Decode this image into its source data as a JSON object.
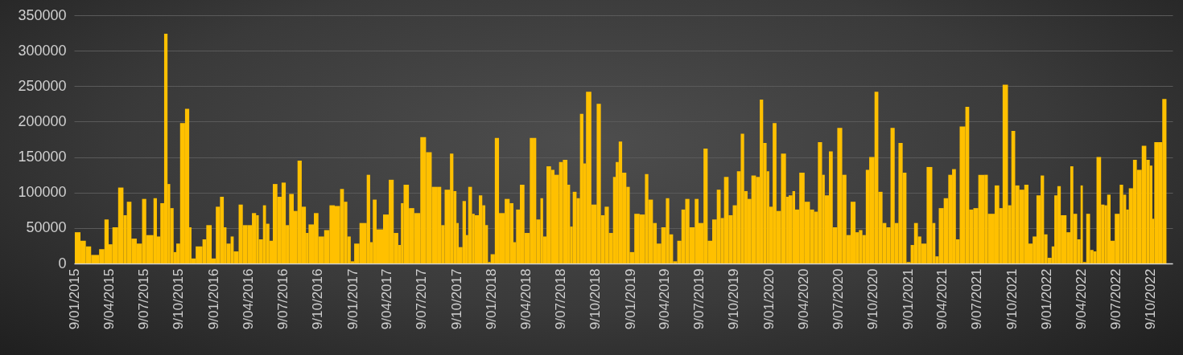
{
  "chart_data": {
    "type": "bar",
    "color": "#ffc000",
    "grid": "y",
    "xlim": [
      "2015-01-07",
      "2022-12-06"
    ],
    "ylim": [
      0,
      350000
    ],
    "yticks": [
      0,
      50000,
      100000,
      150000,
      200000,
      250000,
      300000,
      350000
    ],
    "xticks": [
      {
        "value": "2015-01-09",
        "label": "9/01/2015"
      },
      {
        "value": "2015-04-09",
        "label": "9/04/2015"
      },
      {
        "value": "2015-07-09",
        "label": "9/07/2015"
      },
      {
        "value": "2015-10-09",
        "label": "9/10/2015"
      },
      {
        "value": "2016-01-09",
        "label": "9/01/2016"
      },
      {
        "value": "2016-04-09",
        "label": "9/04/2016"
      },
      {
        "value": "2016-07-09",
        "label": "9/07/2016"
      },
      {
        "value": "2016-10-09",
        "label": "9/10/2016"
      },
      {
        "value": "2017-01-09",
        "label": "9/01/2017"
      },
      {
        "value": "2017-04-09",
        "label": "9/04/2017"
      },
      {
        "value": "2017-07-09",
        "label": "9/07/2017"
      },
      {
        "value": "2017-10-09",
        "label": "9/10/2017"
      },
      {
        "value": "2018-01-09",
        "label": "9/01/2018"
      },
      {
        "value": "2018-04-09",
        "label": "9/04/2018"
      },
      {
        "value": "2018-07-09",
        "label": "9/07/2018"
      },
      {
        "value": "2018-10-09",
        "label": "9/10/2018"
      },
      {
        "value": "2019-01-09",
        "label": "9/01/2019"
      },
      {
        "value": "2019-04-09",
        "label": "9/04/2019"
      },
      {
        "value": "2019-07-09",
        "label": "9/07/2019"
      },
      {
        "value": "2019-10-09",
        "label": "9/10/2019"
      },
      {
        "value": "2020-01-09",
        "label": "9/01/2020"
      },
      {
        "value": "2020-04-09",
        "label": "9/04/2020"
      },
      {
        "value": "2020-07-09",
        "label": "9/07/2020"
      },
      {
        "value": "2020-10-09",
        "label": "9/10/2020"
      },
      {
        "value": "2021-01-09",
        "label": "9/01/2021"
      },
      {
        "value": "2021-04-09",
        "label": "9/04/2021"
      },
      {
        "value": "2021-07-09",
        "label": "9/07/2021"
      },
      {
        "value": "2021-10-09",
        "label": "9/10/2021"
      },
      {
        "value": "2022-01-09",
        "label": "9/01/2022"
      },
      {
        "value": "2022-04-09",
        "label": "9/04/2022"
      },
      {
        "value": "2022-07-09",
        "label": "9/07/2022"
      },
      {
        "value": "2022-10-09",
        "label": "9/10/2022"
      }
    ],
    "x": [
      "2015-01-09",
      "2015-01-24",
      "2015-02-07",
      "2015-02-21",
      "2015-03-14",
      "2015-03-28",
      "2015-04-08",
      "2015-04-18",
      "2015-05-03",
      "2015-05-17",
      "2015-05-26",
      "2015-06-07",
      "2015-06-21",
      "2015-07-05",
      "2015-07-16",
      "2015-08-04",
      "2015-08-13",
      "2015-08-22",
      "2015-09-01",
      "2015-09-10",
      "2015-09-17",
      "2015-09-26",
      "2015-10-03",
      "2015-10-13",
      "2015-10-26",
      "2015-11-06",
      "2015-11-12",
      "2015-11-23",
      "2015-12-11",
      "2015-12-21",
      "2016-01-04",
      "2016-01-15",
      "2016-01-26",
      "2016-02-05",
      "2016-02-12",
      "2016-02-23",
      "2016-03-02",
      "2016-03-15",
      "2016-03-26",
      "2016-04-07",
      "2016-04-19",
      "2016-04-30",
      "2016-05-07",
      "2016-05-18",
      "2016-05-26",
      "2016-06-04",
      "2016-06-13",
      "2016-06-25",
      "2016-07-06",
      "2016-07-17",
      "2016-07-26",
      "2016-08-07",
      "2016-08-17",
      "2016-08-28",
      "2016-09-08",
      "2016-09-15",
      "2016-09-29",
      "2016-10-11",
      "2016-10-26",
      "2016-11-09",
      "2016-11-23",
      "2016-12-07",
      "2016-12-17",
      "2016-12-26",
      "2017-01-04",
      "2017-01-13",
      "2017-01-27",
      "2017-02-15",
      "2017-02-24",
      "2017-03-03",
      "2017-03-13",
      "2017-03-30",
      "2017-04-14",
      "2017-04-27",
      "2017-05-09",
      "2017-05-16",
      "2017-05-23",
      "2017-06-06",
      "2017-06-20",
      "2017-07-06",
      "2017-07-21",
      "2017-08-05",
      "2017-08-19",
      "2017-08-30",
      "2017-09-08",
      "2017-09-22",
      "2017-10-01",
      "2017-10-09",
      "2017-10-15",
      "2017-10-25",
      "2017-11-03",
      "2017-11-09",
      "2017-11-19",
      "2017-11-26",
      "2017-12-07",
      "2017-12-16",
      "2017-12-24",
      "2017-12-31",
      "2018-01-07",
      "2018-01-18",
      "2018-01-29",
      "2018-02-13",
      "2018-02-26",
      "2018-03-08",
      "2018-03-15",
      "2018-03-25",
      "2018-04-06",
      "2018-04-20",
      "2018-04-30",
      "2018-05-07",
      "2018-05-18",
      "2018-05-25",
      "2018-06-03",
      "2018-06-15",
      "2018-06-24",
      "2018-07-06",
      "2018-07-16",
      "2018-07-28",
      "2018-08-04",
      "2018-08-11",
      "2018-08-21",
      "2018-08-30",
      "2018-09-08",
      "2018-09-15",
      "2018-09-29",
      "2018-10-13",
      "2018-10-24",
      "2018-11-03",
      "2018-11-14",
      "2018-11-25",
      "2018-12-02",
      "2018-12-10",
      "2018-12-19",
      "2018-12-30",
      "2019-01-08",
      "2019-01-20",
      "2019-02-03",
      "2019-02-17",
      "2019-02-26",
      "2019-03-10",
      "2019-03-20",
      "2019-04-01",
      "2019-04-13",
      "2019-04-22",
      "2019-05-02",
      "2019-05-13",
      "2019-05-24",
      "2019-06-03",
      "2019-06-14",
      "2019-06-28",
      "2019-07-08",
      "2019-07-21",
      "2019-08-01",
      "2019-08-13",
      "2019-08-25",
      "2019-09-04",
      "2019-09-13",
      "2019-09-25",
      "2019-10-06",
      "2019-10-17",
      "2019-10-27",
      "2019-11-05",
      "2019-11-14",
      "2019-11-24",
      "2019-12-06",
      "2019-12-16",
      "2019-12-25",
      "2020-01-03",
      "2020-01-10",
      "2020-01-19",
      "2020-01-29",
      "2020-02-10",
      "2020-02-23",
      "2020-03-01",
      "2020-03-11",
      "2020-03-18",
      "2020-03-29",
      "2020-04-12",
      "2020-04-26",
      "2020-05-07",
      "2020-05-17",
      "2020-05-28",
      "2020-06-04",
      "2020-06-15",
      "2020-06-25",
      "2020-07-07",
      "2020-07-20",
      "2020-07-31",
      "2020-08-11",
      "2020-08-24",
      "2020-09-02",
      "2020-09-11",
      "2020-09-20",
      "2020-09-29",
      "2020-10-13",
      "2020-10-23",
      "2020-11-03",
      "2020-11-13",
      "2020-11-24",
      "2020-12-05",
      "2020-12-15",
      "2020-12-26",
      "2021-01-05",
      "2021-01-16",
      "2021-01-25",
      "2021-02-04",
      "2021-02-13",
      "2021-02-27",
      "2021-03-14",
      "2021-03-22",
      "2021-03-31",
      "2021-04-13",
      "2021-04-25",
      "2021-05-05",
      "2021-05-15",
      "2021-05-25",
      "2021-06-09",
      "2021-06-19",
      "2021-06-30",
      "2021-07-13",
      "2021-07-29",
      "2021-08-07",
      "2021-08-25",
      "2021-09-06",
      "2021-09-15",
      "2021-09-29",
      "2021-10-08",
      "2021-10-18",
      "2021-10-29",
      "2021-11-11",
      "2021-11-22",
      "2021-12-03",
      "2021-12-13",
      "2021-12-24",
      "2022-01-02",
      "2022-01-11",
      "2022-01-22",
      "2022-01-29",
      "2022-02-06",
      "2022-02-15",
      "2022-03-02",
      "2022-03-12",
      "2022-03-20",
      "2022-03-30",
      "2022-04-08",
      "2022-04-14",
      "2022-04-23",
      "2022-05-03",
      "2022-05-12",
      "2022-05-20",
      "2022-06-01",
      "2022-06-10",
      "2022-06-17",
      "2022-06-26",
      "2022-07-07",
      "2022-07-20",
      "2022-07-29",
      "2022-08-06",
      "2022-08-13",
      "2022-08-24",
      "2022-09-03",
      "2022-09-16",
      "2022-09-28",
      "2022-10-07",
      "2022-10-14",
      "2022-10-19",
      "2022-10-29",
      "2022-11-09"
    ],
    "values": [
      44000,
      32000,
      24000,
      12000,
      20000,
      62000,
      27000,
      51000,
      107000,
      68000,
      87000,
      35000,
      28000,
      91000,
      40000,
      92000,
      38000,
      85000,
      324000,
      112000,
      78000,
      16000,
      28000,
      198000,
      218000,
      51000,
      7000,
      24000,
      34000,
      54000,
      7000,
      80000,
      94000,
      51000,
      28000,
      38000,
      17000,
      83000,
      54000,
      54000,
      71000,
      68000,
      34000,
      82000,
      56000,
      32000,
      112000,
      94000,
      114000,
      54000,
      98000,
      74000,
      145000,
      80000,
      43000,
      55000,
      71000,
      38000,
      47000,
      82000,
      81000,
      105000,
      87000,
      38000,
      3000,
      28000,
      57000,
      125000,
      30000,
      90000,
      48000,
      69000,
      118000,
      43000,
      26000,
      85000,
      111000,
      78000,
      71000,
      178000,
      157000,
      108000,
      108000,
      54000,
      104000,
      155000,
      102000,
      57000,
      23000,
      88000,
      40000,
      108000,
      70000,
      68000,
      96000,
      82000,
      54000,
      2000,
      13000,
      177000,
      71000,
      91000,
      85000,
      30000,
      76000,
      111000,
      43000,
      177000,
      177000,
      62000,
      92000,
      38000,
      137000,
      132000,
      125000,
      143000,
      146000,
      111000,
      52000,
      101000,
      92000,
      211000,
      141000,
      242000,
      83000,
      225000,
      68000,
      80000,
      43000,
      122000,
      143000,
      172000,
      128000,
      108000,
      16000,
      70000,
      69000,
      126000,
      90000,
      57000,
      28000,
      51000,
      92000,
      41000,
      3000,
      32000,
      76000,
      91000,
      51000,
      91000,
      57000,
      162000,
      32000,
      62000,
      104000,
      64000,
      122000,
      68000,
      82000,
      130000,
      183000,
      102000,
      91000,
      124000,
      122000,
      231000,
      170000,
      130000,
      80000,
      198000,
      74000,
      155000,
      94000,
      96000,
      102000,
      76000,
      128000,
      87000,
      76000,
      73000,
      171000,
      125000,
      96000,
      158000,
      51000,
      191000,
      125000,
      40000,
      87000,
      44000,
      47000,
      40000,
      132000,
      150000,
      242000,
      101000,
      57000,
      51000,
      191000,
      57000,
      170000,
      128000,
      2000,
      26000,
      57000,
      38000,
      28000,
      136000,
      57000,
      10000,
      78000,
      92000,
      125000,
      133000,
      34000,
      193000,
      221000,
      76000,
      78000,
      125000,
      125000,
      70000,
      110000,
      78000,
      252000,
      82000,
      187000,
      110000,
      104000,
      111000,
      28000,
      38000,
      96000,
      124000,
      41000,
      8000,
      24000,
      96000,
      109000,
      68000,
      44000,
      137000,
      70000,
      34000,
      110000,
      2000,
      70000,
      19000,
      17000,
      150000,
      83000,
      82000,
      97000,
      32000,
      70000,
      111000,
      97000,
      76000,
      106000,
      146000,
      132000,
      166000,
      146000,
      138000,
      63000,
      171000,
      171000,
      232000
    ]
  }
}
